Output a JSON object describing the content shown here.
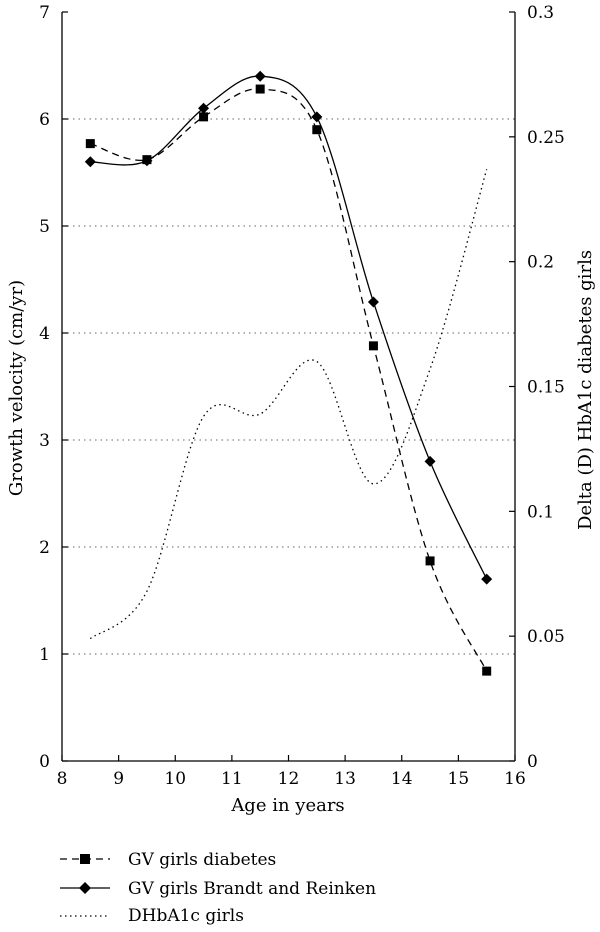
{
  "chart_data": {
    "type": "line",
    "xlabel": "Age in years",
    "ylabel_left": "Growth velocity (cm/yr)",
    "ylabel_right": "Delta (D) HbA1c diabetes girls",
    "xlim": [
      8,
      16
    ],
    "ylim_left": [
      0,
      7
    ],
    "ylim_right": [
      0,
      0.3
    ],
    "x_ticks": [
      "8",
      "9",
      "10",
      "11",
      "12",
      "13",
      "14",
      "15",
      "16"
    ],
    "y_left_ticks": [
      "0",
      "1",
      "2",
      "3",
      "4",
      "5",
      "6",
      "7"
    ],
    "y_right_ticks": [
      "0",
      "0.05",
      "0.1",
      "0.15",
      "0.2",
      "0.25",
      "0.3"
    ],
    "grid": "horizontal dotted",
    "legend_position": "bottom",
    "series": [
      {
        "name": "GV girls diabetes",
        "axis": "left",
        "style": "dashed",
        "marker": "square",
        "color": "#000000",
        "x": [
          8.5,
          9.5,
          10.5,
          11.5,
          12.5,
          13.5,
          14.5,
          15.5
        ],
        "y": [
          5.77,
          5.62,
          6.02,
          6.28,
          5.9,
          3.88,
          1.87,
          0.84
        ]
      },
      {
        "name": "GV girls Brandt and Reinken",
        "axis": "left",
        "style": "solid",
        "marker": "diamond",
        "color": "#000000",
        "x": [
          8.5,
          9.5,
          10.5,
          11.5,
          12.5,
          13.5,
          14.5,
          15.5
        ],
        "y": [
          5.6,
          5.61,
          6.1,
          6.4,
          6.02,
          4.29,
          2.8,
          1.7
        ]
      },
      {
        "name": "DHbA1c girls",
        "axis": "right",
        "style": "dotted",
        "marker": "none",
        "color": "#000000",
        "x": [
          8.5,
          9.5,
          10.5,
          11.5,
          12.5,
          13.5,
          14.5,
          15.5
        ],
        "y": [
          0.049,
          0.068,
          0.138,
          0.139,
          0.16,
          0.111,
          0.157,
          0.237
        ]
      }
    ]
  }
}
